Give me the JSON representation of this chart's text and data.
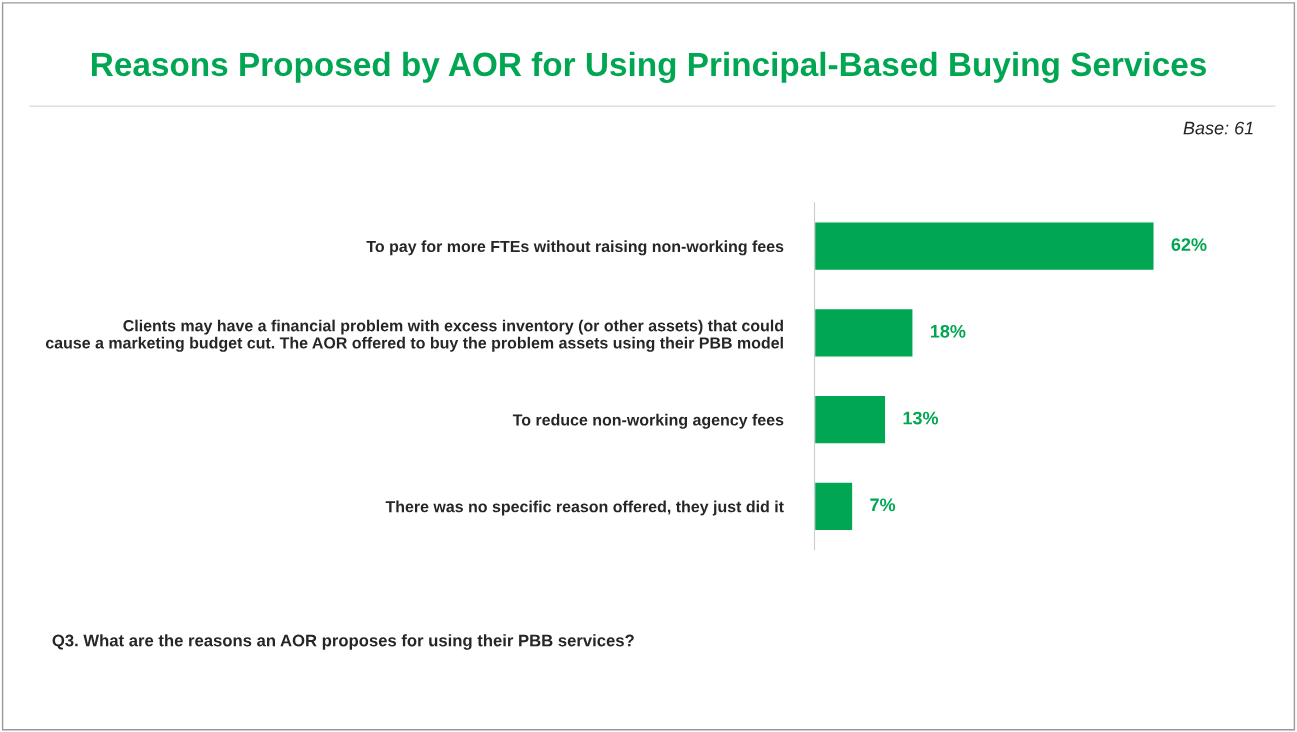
{
  "chart_data": {
    "type": "bar",
    "orientation": "horizontal",
    "title": "Reasons Proposed by AOR for Using Principal-Based Buying Services",
    "categories": [
      "To pay for more FTEs without raising non-working fees",
      "Clients may have a financial problem with excess inventory (or other assets) that could cause a marketing budget cut. The AOR offered to buy the problem assets using their PBB model",
      "To reduce non-working agency fees",
      "There was no specific reason offered, they just did it"
    ],
    "values": [
      62,
      18,
      13,
      7
    ],
    "value_labels": [
      "62%",
      "18%",
      "13%",
      "7%"
    ],
    "color": "#00a651",
    "tick_labels": "y",
    "grid": false,
    "legend": false,
    "annotations": [
      "Base: 61",
      "Q3. What are the reasons an AOR proposes for using their PBB services?"
    ]
  }
}
